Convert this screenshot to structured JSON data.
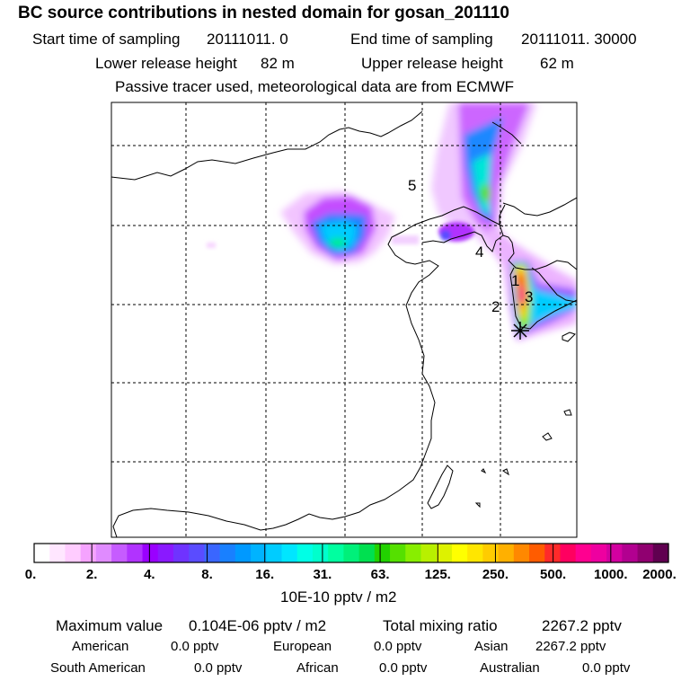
{
  "header": {
    "title": "BC  source contributions in nested domain for gosan_201110",
    "start_label": "Start time of sampling",
    "start_value": "20111011.     0",
    "end_label": "End time of sampling",
    "end_value": "20111011. 30000",
    "lower_label": "Lower release height",
    "lower_value": "82 m",
    "upper_label": "Upper release height",
    "upper_value": "62 m",
    "note": "Passive tracer used, meteorological data are from ECMWF"
  },
  "map": {
    "region_labels": [
      "5",
      "4",
      "1",
      "3",
      "2"
    ],
    "receptor_marker": "asterisk-icon"
  },
  "colorbar": {
    "ticks": [
      "0.",
      "2.",
      "4.",
      "8.",
      "16.",
      "31.",
      "63.",
      "125.",
      "250.",
      "500.",
      "1000.",
      "2000."
    ],
    "unit": "10E-10 pptv / m2",
    "colors": [
      "#ffffff",
      "#ffe6ff",
      "#ffccff",
      "#f5a3ff",
      "#e08bff",
      "#c65cff",
      "#b133ff",
      "#9a00ff",
      "#8a19ff",
      "#6f33ff",
      "#5a4cff",
      "#3a66ff",
      "#1980ff",
      "#0099ff",
      "#00b3ff",
      "#00ccff",
      "#00e6ff",
      "#00ffe6",
      "#00ffcc",
      "#00ffa0",
      "#00f07a",
      "#00e050",
      "#22d200",
      "#55e000",
      "#88ee00",
      "#b8f000",
      "#ddf200",
      "#ffff00",
      "#ffe600",
      "#ffcc00",
      "#ffb000",
      "#ff8800",
      "#ff5c00",
      "#ff2a2a",
      "#ff0060",
      "#ff0090",
      "#ee00a0",
      "#d200a0",
      "#b20090",
      "#900070",
      "#600050"
    ]
  },
  "footer": {
    "max_label": "Maximum value",
    "max_value": "0.104E-06 pptv / m2",
    "total_label": "Total mixing ratio",
    "total_value": "2267.2 pptv",
    "contributions": [
      {
        "region": "American",
        "value": "0.0 pptv"
      },
      {
        "region": "European",
        "value": "0.0 pptv"
      },
      {
        "region": "Asian",
        "value": "2267.2 pptv"
      },
      {
        "region": "South American",
        "value": "0.0 pptv"
      },
      {
        "region": "African",
        "value": "0.0 pptv"
      },
      {
        "region": "Australian",
        "value": "0.0 pptv"
      }
    ]
  }
}
